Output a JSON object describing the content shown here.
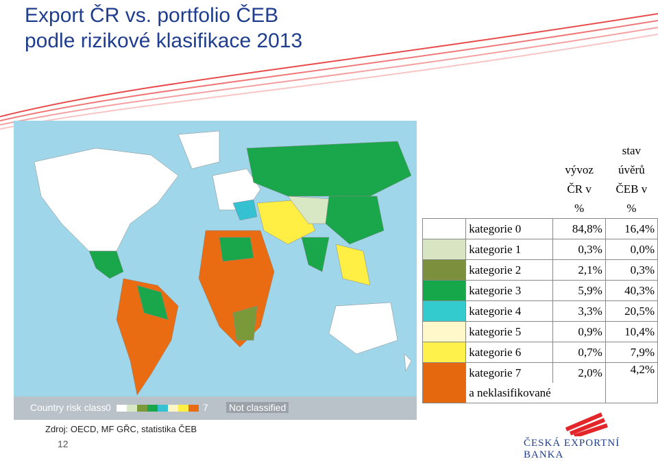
{
  "title": {
    "line1": "Export ČR vs. portfolio ČEB",
    "line2": "podle rizikové klasifikace 2013"
  },
  "map": {
    "legend": {
      "label": "Country risk class",
      "start": "0",
      "end": "7",
      "not_classified": "Not classified"
    },
    "swatch_colors": [
      "#ffffff",
      "#d9e8c4",
      "#7a9a3a",
      "#1aa64a",
      "#36c1d2",
      "#fff6c6",
      "#ffee44",
      "#ea6c12"
    ]
  },
  "table": {
    "header": {
      "col1": [
        "vývoz",
        "ČR v",
        "%"
      ],
      "col2": [
        "stav",
        "úvěrů",
        "ČEB v",
        "%"
      ]
    },
    "rows": [
      {
        "label": "kategorie 0",
        "export": "84,8%",
        "ceb": "16,4%",
        "color": "#ffffff"
      },
      {
        "label": "kategorie 1",
        "export": "0,3%",
        "ceb": "0,0%",
        "color": "#d9e5c2"
      },
      {
        "label": "kategorie 2",
        "export": "2,1%",
        "ceb": "0,3%",
        "color": "#7b8f3c"
      },
      {
        "label": "kategorie 3",
        "export": "5,9%",
        "ceb": "40,3%",
        "color": "#15a74a"
      },
      {
        "label": "kategorie 4",
        "export": "3,3%",
        "ceb": "20,5%",
        "color": "#34cbcf"
      },
      {
        "label": "kategorie 5",
        "export": "0,9%",
        "ceb": "10,4%",
        "color": "#fff8cb"
      },
      {
        "label": "kategorie 6",
        "export": "0,7%",
        "ceb": "7,9%",
        "color": "#fff14c"
      },
      {
        "label": "kategorie 7",
        "export": "2,0%",
        "ceb": "4,2%",
        "color": "#e5680f"
      }
    ],
    "last_note": "a neklasifikované"
  },
  "footer": {
    "source": "Zdroj: OECD, MF GŘC, statistika ČEB",
    "page": "12"
  },
  "logo": {
    "text": "ČESKÁ EXPORTNÍ BANKA",
    "color": "#e3262a"
  }
}
